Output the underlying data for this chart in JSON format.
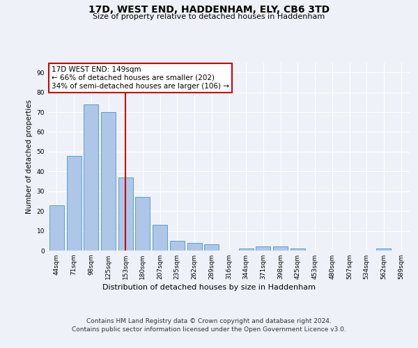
{
  "title": "17D, WEST END, HADDENHAM, ELY, CB6 3TD",
  "subtitle": "Size of property relative to detached houses in Haddenham",
  "xlabel": "Distribution of detached houses by size in Haddenham",
  "ylabel": "Number of detached properties",
  "categories": [
    "44sqm",
    "71sqm",
    "98sqm",
    "125sqm",
    "153sqm",
    "180sqm",
    "207sqm",
    "235sqm",
    "262sqm",
    "289sqm",
    "316sqm",
    "344sqm",
    "371sqm",
    "398sqm",
    "425sqm",
    "453sqm",
    "480sqm",
    "507sqm",
    "534sqm",
    "562sqm",
    "589sqm"
  ],
  "values": [
    23,
    48,
    74,
    70,
    37,
    27,
    13,
    5,
    4,
    3,
    0,
    1,
    2,
    2,
    1,
    0,
    0,
    0,
    0,
    1,
    0
  ],
  "bar_color": "#aec6e8",
  "bar_edge_color": "#5a9fd4",
  "vline_x_index": 4,
  "vline_color": "#cc0000",
  "annotation_line1": "17D WEST END: 149sqm",
  "annotation_line2": "← 66% of detached houses are smaller (202)",
  "annotation_line3": "34% of semi-detached houses are larger (106) →",
  "annotation_box_color": "#ffffff",
  "annotation_box_edge_color": "#cc0000",
  "ylim": [
    0,
    95
  ],
  "yticks": [
    0,
    10,
    20,
    30,
    40,
    50,
    60,
    70,
    80,
    90
  ],
  "footer_line1": "Contains HM Land Registry data © Crown copyright and database right 2024.",
  "footer_line2": "Contains public sector information licensed under the Open Government Licence v3.0.",
  "bg_color": "#eef2f8",
  "plot_bg_color": "#eef2f8"
}
